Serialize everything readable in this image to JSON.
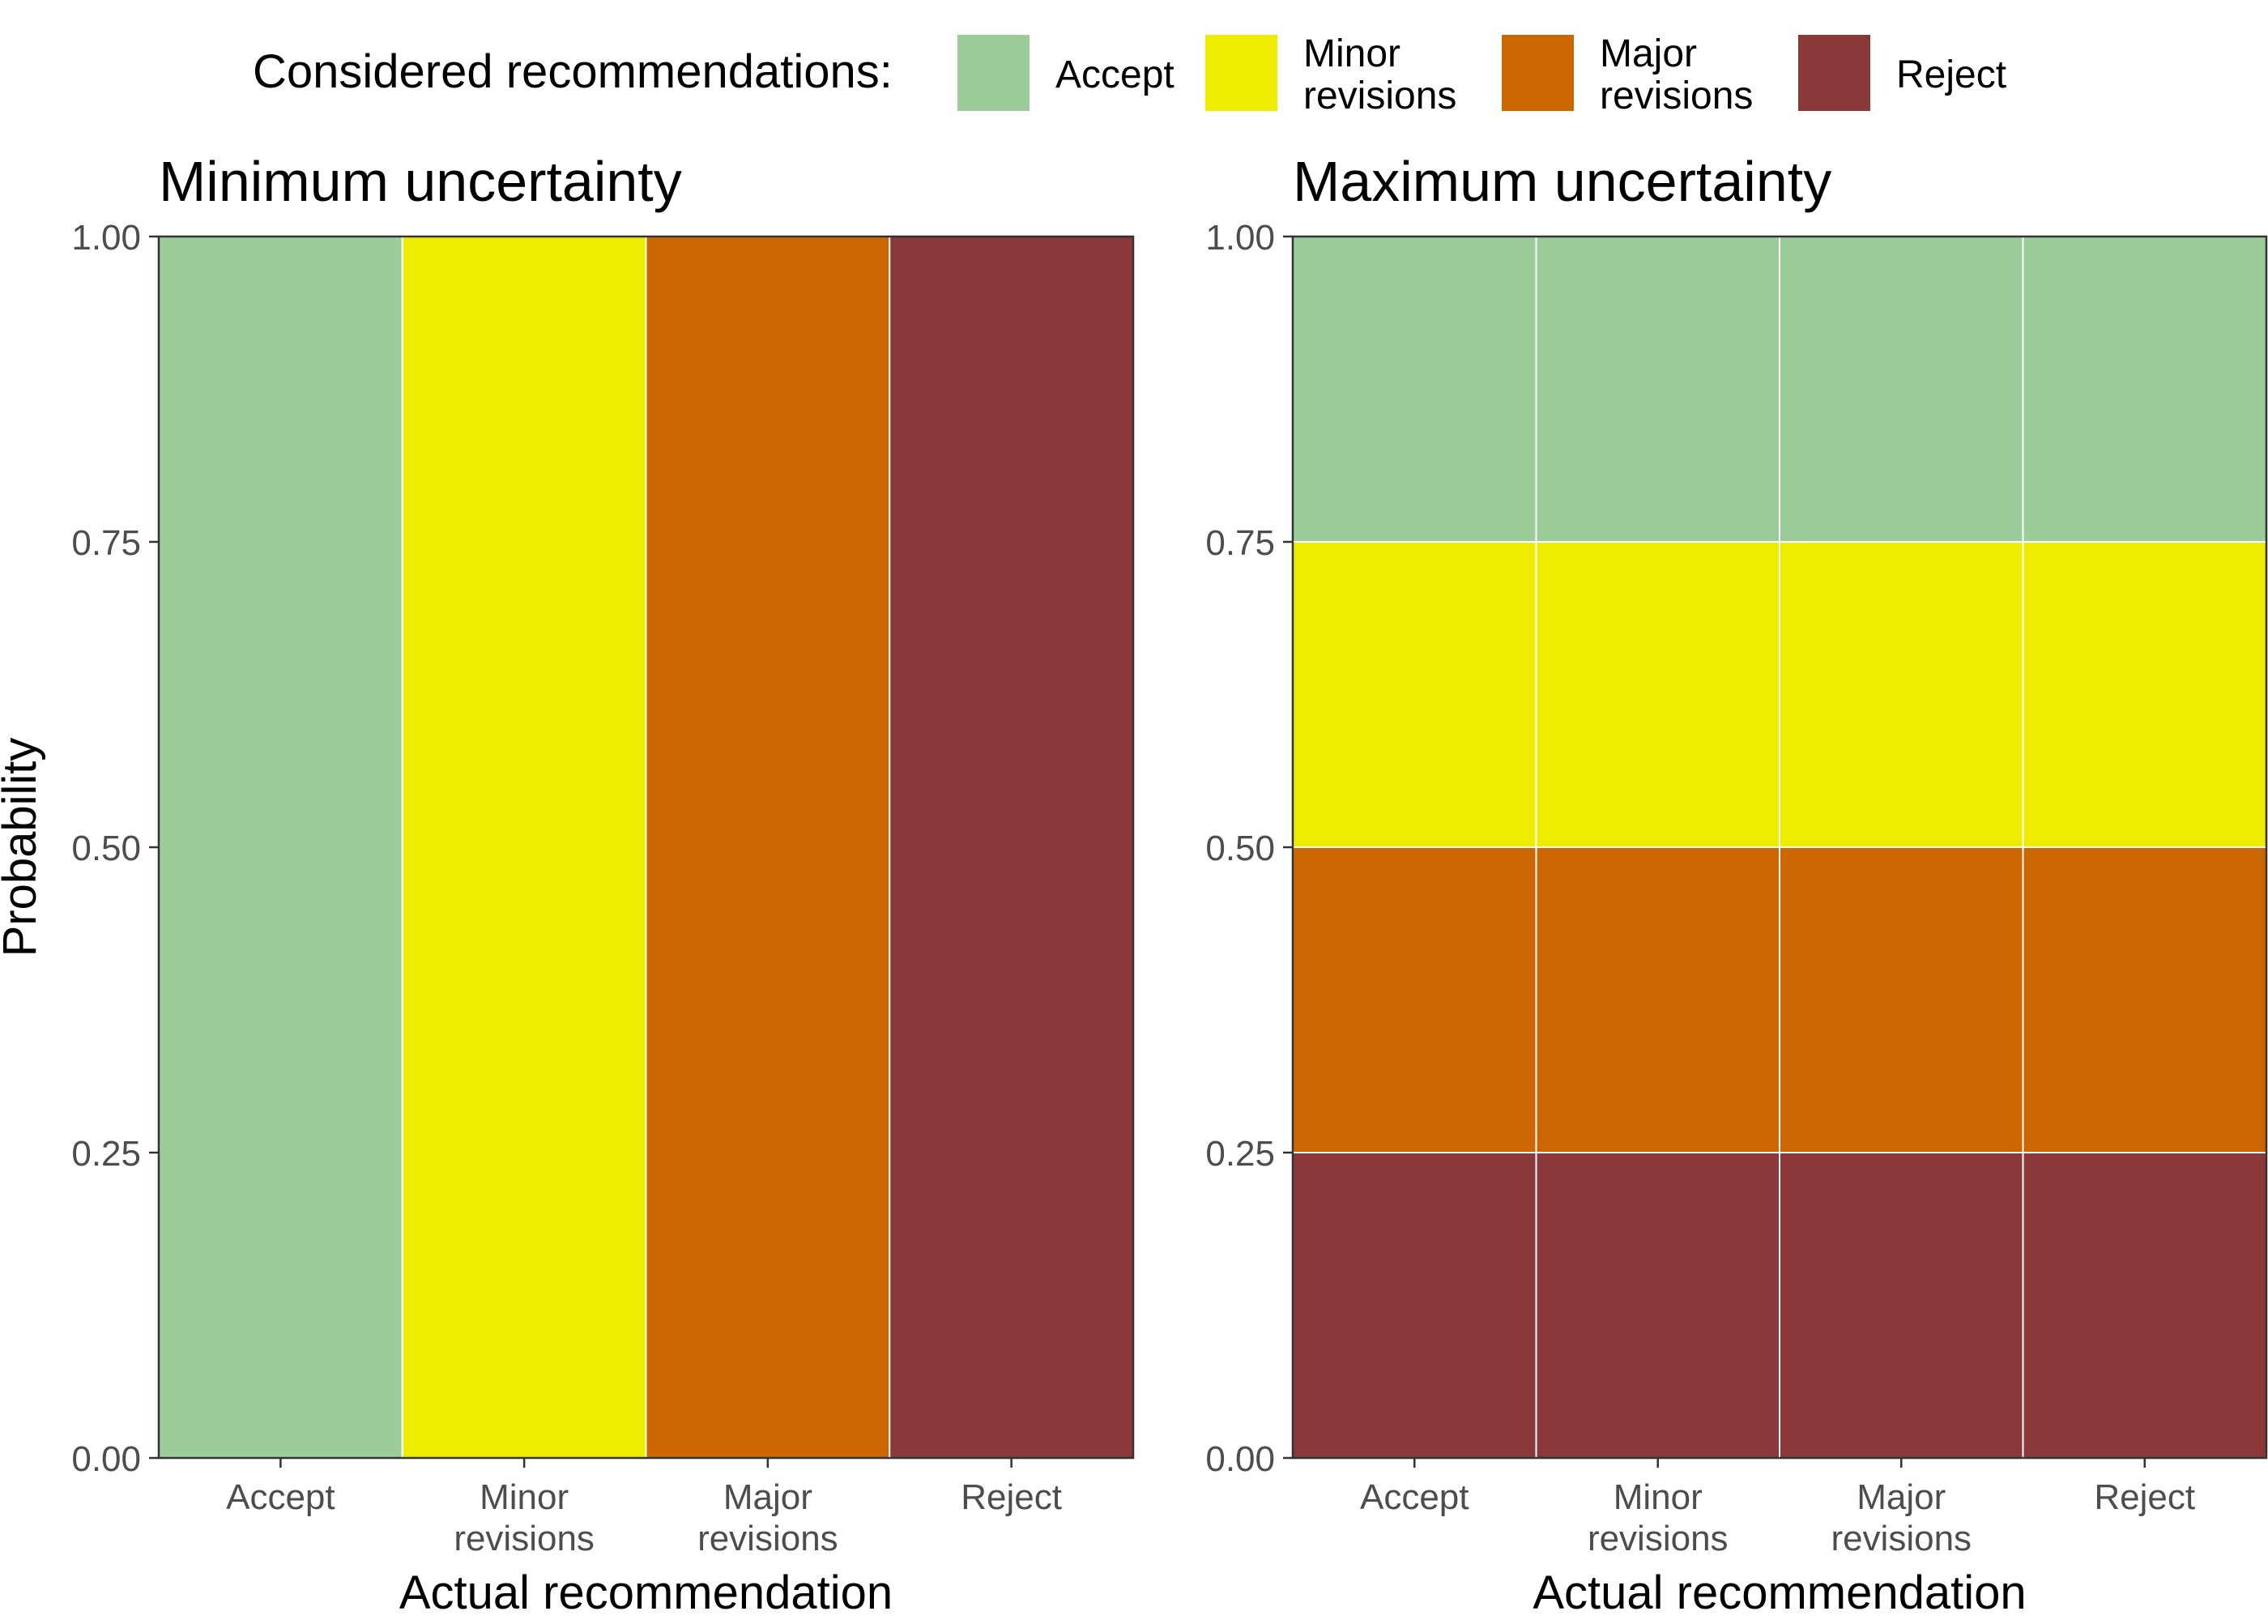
{
  "legend": {
    "title": "Considered recommendations:",
    "items": [
      {
        "label": [
          "Accept"
        ],
        "color": "#9ccc9a"
      },
      {
        "label": [
          "Minor",
          "revisions"
        ],
        "color": "#eeec00"
      },
      {
        "label": [
          "Major",
          "revisions"
        ],
        "color": "#cc6600"
      },
      {
        "label": [
          "Reject"
        ],
        "color": "#8b383a"
      }
    ]
  },
  "chart_data": [
    {
      "type": "bar",
      "stacked": true,
      "title": "Minimum uncertainty",
      "xlabel": "Actual recommendation",
      "ylabel": "Probability",
      "ylim": [
        0,
        1
      ],
      "yticks": [
        "0.00",
        "0.25",
        "0.50",
        "0.75",
        "1.00"
      ],
      "categories": [
        [
          "Accept"
        ],
        [
          "Minor",
          "revisions"
        ],
        [
          "Major",
          "revisions"
        ],
        [
          "Reject"
        ]
      ],
      "series": [
        {
          "name": "Reject",
          "color": "#8b383a",
          "values": [
            0,
            0,
            0,
            1
          ]
        },
        {
          "name": "Major revisions",
          "color": "#cc6600",
          "values": [
            0,
            0,
            1,
            0
          ]
        },
        {
          "name": "Minor revisions",
          "color": "#eeec00",
          "values": [
            0,
            1,
            0,
            0
          ]
        },
        {
          "name": "Accept",
          "color": "#9ccc9a",
          "values": [
            1,
            0,
            0,
            0
          ]
        }
      ]
    },
    {
      "type": "bar",
      "stacked": true,
      "title": "Maximum uncertainty",
      "xlabel": "Actual recommendation",
      "ylabel": "",
      "ylim": [
        0,
        1
      ],
      "yticks": [
        "0.00",
        "0.25",
        "0.50",
        "0.75",
        "1.00"
      ],
      "categories": [
        [
          "Accept"
        ],
        [
          "Minor",
          "revisions"
        ],
        [
          "Major",
          "revisions"
        ],
        [
          "Reject"
        ]
      ],
      "series": [
        {
          "name": "Reject",
          "color": "#8b383a",
          "values": [
            0.25,
            0.25,
            0.25,
            0.25
          ]
        },
        {
          "name": "Major revisions",
          "color": "#cc6600",
          "values": [
            0.25,
            0.25,
            0.25,
            0.25
          ]
        },
        {
          "name": "Minor revisions",
          "color": "#eeec00",
          "values": [
            0.25,
            0.25,
            0.25,
            0.25
          ]
        },
        {
          "name": "Accept",
          "color": "#9ccc9a",
          "values": [
            0.25,
            0.25,
            0.25,
            0.25
          ]
        }
      ]
    }
  ]
}
